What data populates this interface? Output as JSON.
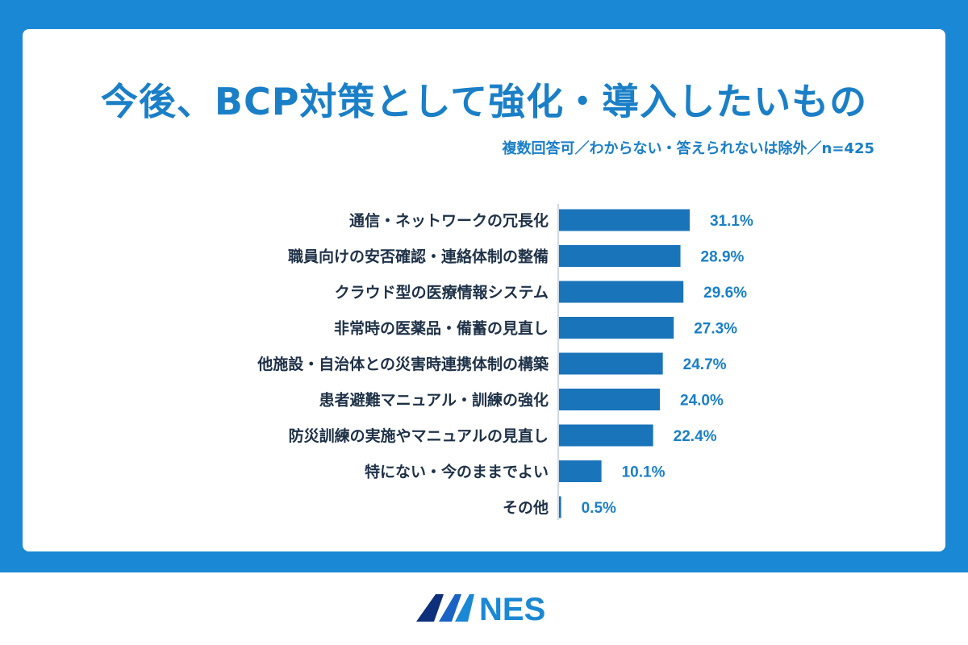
{
  "title": "今後、BCP対策として強化・導入したいもの",
  "subtitle": "複数回答可／わからない・答えられないは除外／n=425",
  "logo_text": "MNES",
  "colors": {
    "frame": "#1a88d4",
    "bar": "#1a74ba",
    "label": "#1e3147",
    "value": "#1a7fc7"
  },
  "chart_data": {
    "type": "bar",
    "orientation": "horizontal",
    "title": "今後、BCP対策として強化・導入したいもの",
    "subtitle": "複数回答可／わからない・答えられないは除外／n=425",
    "unit": "%",
    "categories": [
      "通信・ネットワークの冗長化",
      "職員向けの安否確認・連絡体制の整備",
      "クラウド型の医療情報システム",
      "非常時の医薬品・備蓄の見直し",
      "他施設・自治体との災害時連携体制の構築",
      "患者避難マニュアル・訓練の強化",
      "防災訓練の実施やマニュアルの見直し",
      "特にない・今のままでよい",
      "その他"
    ],
    "values": [
      31.1,
      28.9,
      29.6,
      27.3,
      24.7,
      24.0,
      22.4,
      10.1,
      0.5
    ],
    "value_labels": [
      "31.1%",
      "28.9%",
      "29.6%",
      "27.3%",
      "24.7%",
      "24.0%",
      "22.4%",
      "10.1%",
      "0.5%"
    ],
    "grid": false,
    "legend": "none"
  }
}
